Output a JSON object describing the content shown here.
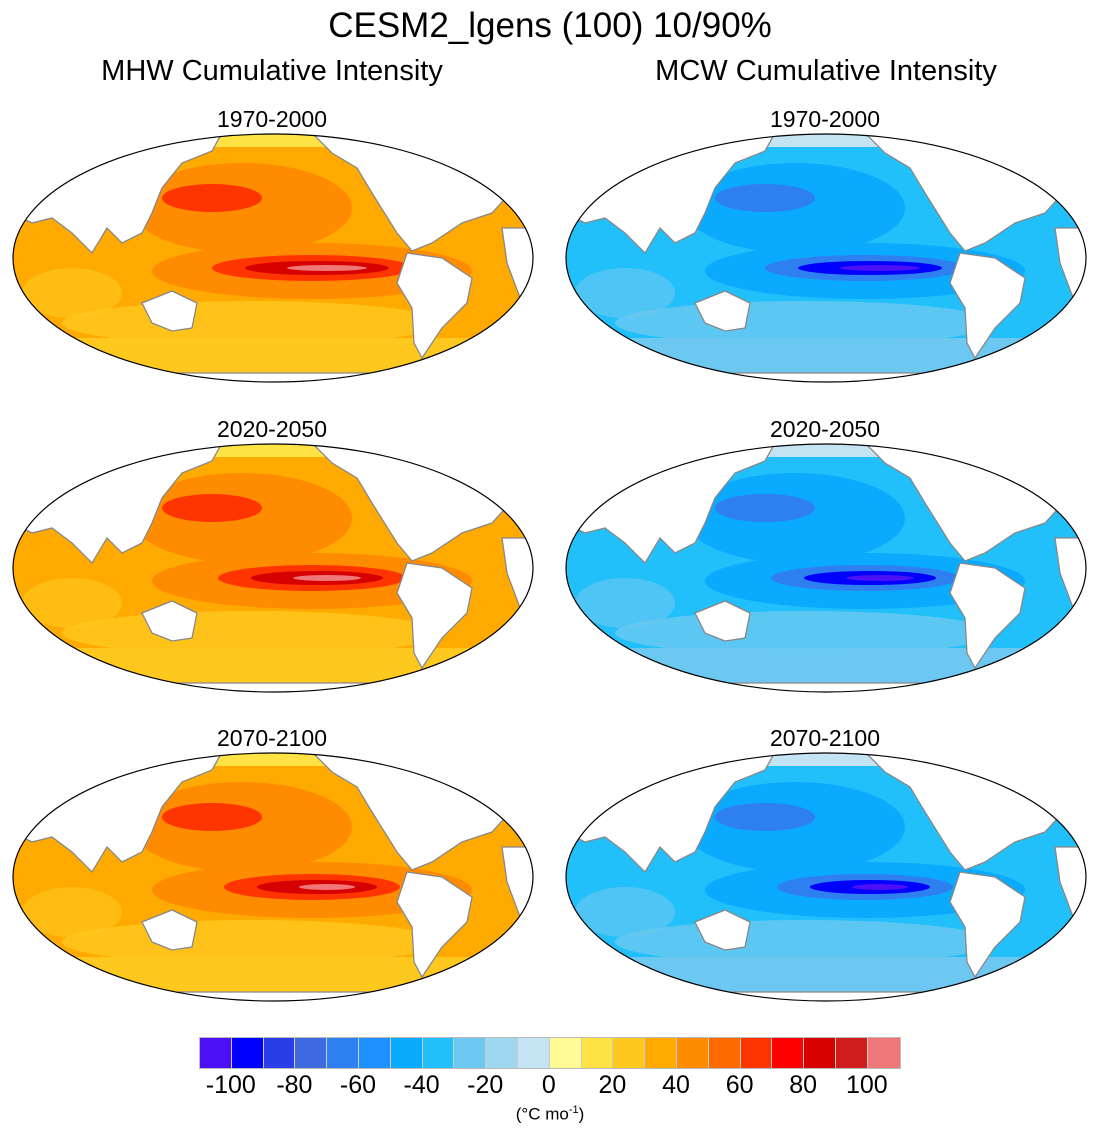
{
  "title": "CESM2_lgens (100) 10/90%",
  "columns": [
    {
      "label": "MHW Cumulative Intensity",
      "palette": "warm"
    },
    {
      "label": "MCW Cumulative Intensity",
      "palette": "cool"
    }
  ],
  "rows": [
    {
      "label": "1970-2000"
    },
    {
      "label": "2020-2050"
    },
    {
      "label": "2070-2100"
    }
  ],
  "colorbar": {
    "ticks": [
      "-100",
      "-80",
      "-60",
      "-40",
      "-20",
      "0",
      "20",
      "40",
      "60",
      "80",
      "100"
    ],
    "levels": [
      -100,
      -90,
      -80,
      -70,
      -60,
      -50,
      -40,
      -30,
      -20,
      -10,
      0,
      10,
      20,
      30,
      40,
      50,
      60,
      70,
      80,
      90,
      100
    ],
    "colors": [
      "#4b10f5",
      "#0000ff",
      "#2a3ee8",
      "#3d6ae0",
      "#2e7ff0",
      "#1e90ff",
      "#0aaaff",
      "#22c0fa",
      "#6cc8f0",
      "#9fd6f0",
      "#c4e4f4",
      "#fff996",
      "#ffe345",
      "#ffc81e",
      "#ffaa00",
      "#ff8c00",
      "#ff6a00",
      "#ff3500",
      "#ff0000",
      "#d70000",
      "#d01e1e",
      "#f07878"
    ],
    "unit_prefix": "(°C mo",
    "unit_exp": "-1",
    "unit_suffix": ")"
  },
  "chart_data": {
    "type": "heatmap",
    "title": "CESM2_lgens (100) 10/90%",
    "projection": "Robinson, Pacific-centered",
    "panels": [
      {
        "column": "MHW Cumulative Intensity",
        "period": "1970-2000",
        "typical_range": [
          20,
          100
        ],
        "max_region": "equatorial eastern Pacific"
      },
      {
        "column": "MHW Cumulative Intensity",
        "period": "2020-2050",
        "typical_range": [
          20,
          100
        ],
        "max_region": "equatorial eastern Pacific"
      },
      {
        "column": "MHW Cumulative Intensity",
        "period": "2070-2100",
        "typical_range": [
          10,
          100
        ],
        "max_region": "equatorial eastern Pacific"
      },
      {
        "column": "MCW Cumulative Intensity",
        "period": "1970-2000",
        "typical_range": [
          -100,
          -10
        ],
        "max_region": "equatorial eastern Pacific"
      },
      {
        "column": "MCW Cumulative Intensity",
        "period": "2020-2050",
        "typical_range": [
          -100,
          -10
        ],
        "max_region": "equatorial eastern Pacific"
      },
      {
        "column": "MCW Cumulative Intensity",
        "period": "2070-2100",
        "typical_range": [
          -100,
          -20
        ],
        "max_region": "equatorial eastern Pacific"
      }
    ]
  }
}
